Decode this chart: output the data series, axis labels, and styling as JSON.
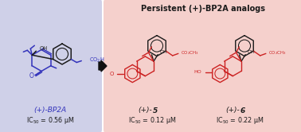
{
  "bg_color": "#ffffff",
  "left_panel_color": "#cfd0e8",
  "right_panel_color": "#f5d0cc",
  "blue_color": "#3333bb",
  "red_color": "#cc2222",
  "dark_color": "#1a1a1a",
  "arrow_color": "#111111",
  "left_label": "(+)-BP2A",
  "left_ic50": "IC$_{50}$ = 0.56 μM",
  "right_title": "Persistent (+)-BP2A analogs",
  "compound5_ic50": "IC$_{50}$ = 0.12 μM",
  "compound6_ic50": "IC$_{50}$ = 0.22 μM"
}
